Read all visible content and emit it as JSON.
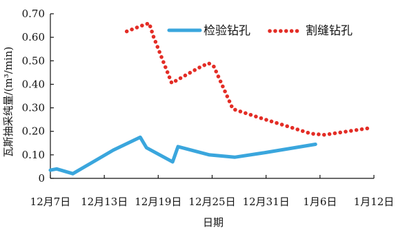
{
  "chart_data": {
    "type": "line",
    "title": "",
    "xlabel": "日期",
    "ylabel": "瓦斯抽采纯量/(m³/min)",
    "x_tick_labels": [
      "12月7日",
      "12月13日",
      "12月19日",
      "12月25日",
      "12月31日",
      "1月6日",
      "1月12日"
    ],
    "x_tick_days": [
      0,
      6,
      12,
      18,
      24,
      30,
      36
    ],
    "xlim": [
      0,
      36
    ],
    "ylim": [
      0,
      0.7
    ],
    "y_ticks": [
      "0",
      "0.10",
      "0.20",
      "0.30",
      "0.40",
      "0.50",
      "0.60",
      "0.70"
    ],
    "y_tick_values": [
      0,
      0.1,
      0.2,
      0.3,
      0.4,
      0.5,
      0.6,
      0.7
    ],
    "grid": false,
    "legend_position": "top-right",
    "series": [
      {
        "name": "检验钻孔",
        "color": "#3aa6dd",
        "style": "solid",
        "x": [
          0,
          0.7,
          2.5,
          7,
          10,
          10.7,
          13.6,
          14.2,
          17.7,
          20.5,
          24,
          29.5
        ],
        "y": [
          0.035,
          0.04,
          0.02,
          0.12,
          0.175,
          0.13,
          0.07,
          0.135,
          0.1,
          0.09,
          0.11,
          0.145
        ]
      },
      {
        "name": "割缝钻孔",
        "color": "#e32d26",
        "style": "dotted",
        "x": [
          8.5,
          10.2,
          11,
          11.5,
          13.5,
          16.5,
          17.6,
          18.2,
          20.3,
          23.5,
          26.5,
          29,
          30.5,
          35.7
        ],
        "y": [
          0.625,
          0.65,
          0.66,
          0.6,
          0.405,
          0.47,
          0.49,
          0.475,
          0.295,
          0.255,
          0.22,
          0.19,
          0.185,
          0.215
        ]
      }
    ]
  }
}
